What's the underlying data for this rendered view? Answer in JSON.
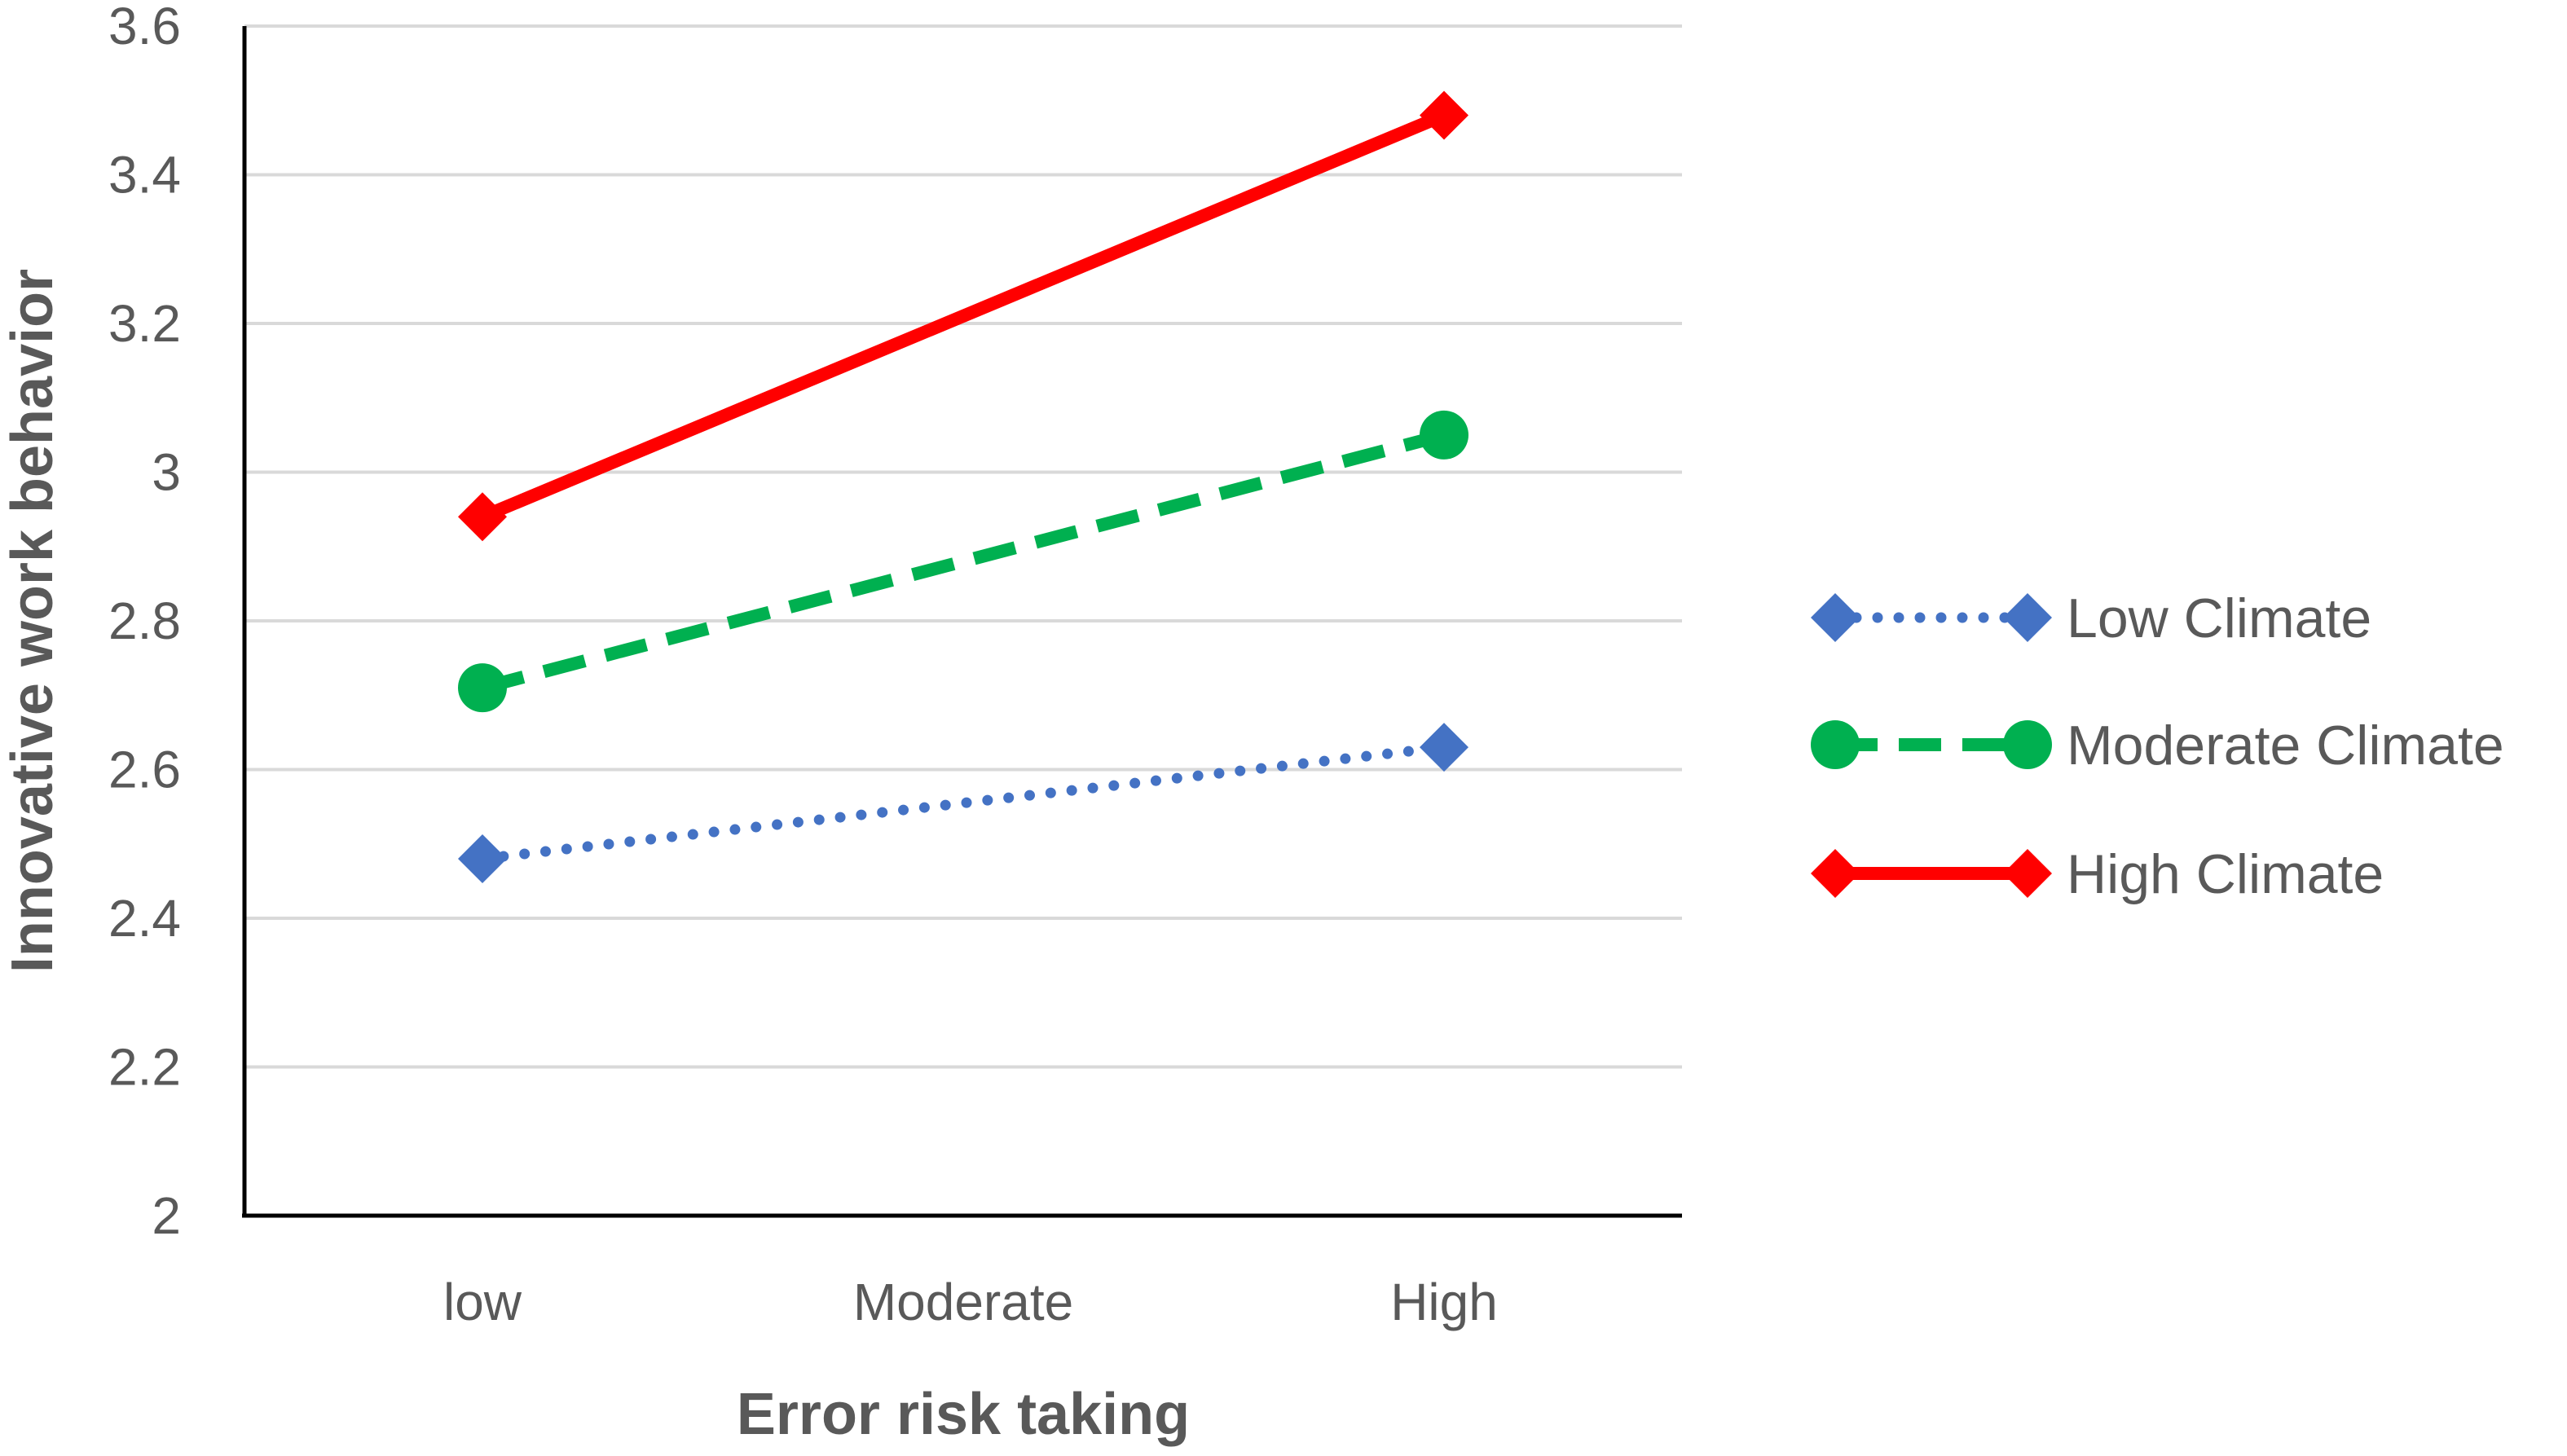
{
  "chart_data": {
    "type": "line",
    "title": "",
    "xlabel": "Error risk taking",
    "ylabel": "Innovative work behavior",
    "categories": [
      "low",
      "Moderate",
      "High"
    ],
    "ylim": [
      2,
      3.6
    ],
    "yticks": [
      "2",
      "2.2",
      "2.4",
      "2.6",
      "2.8",
      "3",
      "3.2",
      "3.4",
      "3.6"
    ],
    "grid": true,
    "legend_position": "right",
    "series": [
      {
        "name": "Low Climate",
        "x_values": [
          "low",
          "High"
        ],
        "values": [
          2.48,
          2.63
        ],
        "color": "#4472C4",
        "line_style": "dotted",
        "marker": "diamond"
      },
      {
        "name": "Moderate Climate",
        "x_values": [
          "low",
          "High"
        ],
        "values": [
          2.71,
          3.05
        ],
        "color": "#00B050",
        "line_style": "dashed",
        "marker": "circle"
      },
      {
        "name": "High Climate",
        "x_values": [
          "low",
          "High"
        ],
        "values": [
          2.94,
          3.48
        ],
        "color": "#FF0000",
        "line_style": "solid",
        "marker": "diamond"
      }
    ]
  }
}
